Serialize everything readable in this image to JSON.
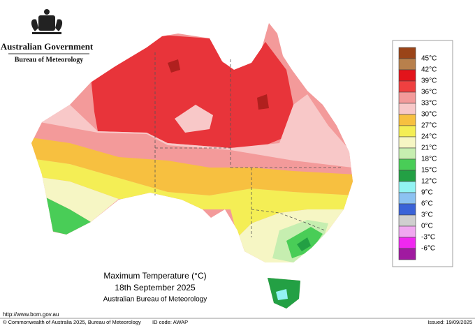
{
  "header": {
    "government": "Australian Government",
    "agency": "Bureau of Meteorology"
  },
  "map": {
    "title": "Maximum Temperature (°C)",
    "date": "18th September 2025",
    "source": "Australian Bureau of Meteorology"
  },
  "legend": {
    "colors": [
      "#9a4418",
      "#b8804c",
      "#e3141b",
      "#ef4040",
      "#f39a9a",
      "#f8c8c8",
      "#f7c040",
      "#f4ee55",
      "#f6f6c4",
      "#c6eeb0",
      "#49cd57",
      "#23a044",
      "#92f3f3",
      "#8cc2f2",
      "#3a63d8",
      "#cfcfcf",
      "#f0a8f0",
      "#f028f0",
      "#a01aa0"
    ],
    "labels": [
      "45°C",
      "42°C",
      "39°C",
      "36°C",
      "33°C",
      "30°C",
      "27°C",
      "24°C",
      "21°C",
      "18°C",
      "15°C",
      "12°C",
      "9°C",
      "6°C",
      "3°C",
      "0°C",
      "-3°C",
      "-6°C"
    ]
  },
  "footer": {
    "url": "http://www.bom.gov.au",
    "copyright": "© Commonwealth of Australia 2025, Bureau of Meteorology",
    "id": "ID code: AWAP",
    "issued": "Issued: 19/09/2025"
  }
}
